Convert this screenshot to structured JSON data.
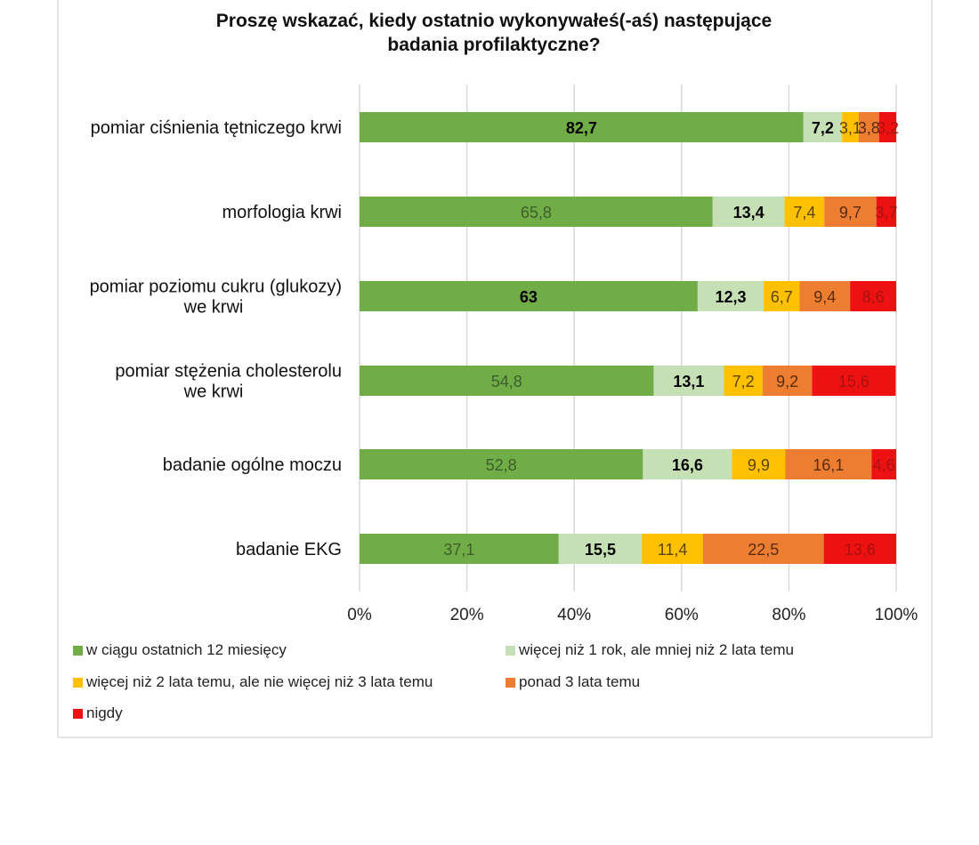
{
  "chart_data": {
    "type": "bar",
    "orientation": "horizontal",
    "stacked": true,
    "title": "Proszę wskazać, kiedy ostatnio wykonywałeś(-aś) następujące badania profilaktyczne?",
    "title_lines": [
      "Proszę wskazać, kiedy ostatnio wykonywałeś(-aś) następujące",
      "badania profilaktyczne?"
    ],
    "categories": [
      "pomiar ciśnienia tętniczego krwi",
      "morfologia krwi",
      "pomiar poziomu cukru (glukozy) we krwi",
      "pomiar stężenia cholesterolu we krwi",
      "badanie ogólne moczu",
      "badanie EKG"
    ],
    "category_lines": [
      [
        "pomiar ciśnienia tętniczego krwi"
      ],
      [
        "morfologia krwi"
      ],
      [
        "pomiar poziomu cukru (glukozy)",
        "we krwi"
      ],
      [
        "pomiar stężenia cholesterolu",
        "we krwi"
      ],
      [
        "badanie ogólne moczu"
      ],
      [
        "badanie EKG"
      ]
    ],
    "series": [
      {
        "name": "w ciągu ostatnich 12 miesięcy",
        "color": "#70ad47",
        "values": [
          82.7,
          65.8,
          63,
          54.8,
          52.8,
          37.1
        ]
      },
      {
        "name": "więcej niż 1 rok, ale mniej niż 2 lata temu",
        "color": "#c5e0b4",
        "values": [
          7.2,
          13.4,
          12.3,
          13.1,
          16.6,
          15.5
        ]
      },
      {
        "name": "więcej niż 2 lata temu, ale nie więcej niż 3 lata temu",
        "color": "#ffc000",
        "values": [
          3.1,
          7.4,
          6.7,
          7.2,
          9.9,
          11.4
        ]
      },
      {
        "name": "ponad 3 lata temu",
        "color": "#ed7d31",
        "values": [
          3.8,
          9.7,
          9.4,
          9.2,
          16.1,
          22.5
        ]
      },
      {
        "name": "nigdy",
        "color": "#ee1111",
        "values": [
          3.2,
          3.7,
          8.6,
          15.6,
          4.6,
          13.6
        ]
      }
    ],
    "data_labels": [
      [
        "82,7",
        "65,8",
        "63",
        "54,8",
        "52,8",
        "37,1"
      ],
      [
        "7,2",
        "13,4",
        "12,3",
        "13,1",
        "16,6",
        "15,5"
      ],
      [
        "3,1",
        "7,4",
        "6,7",
        "7,2",
        "9,9",
        "11,4"
      ],
      [
        "3,8",
        "9,7",
        "9,4",
        "9,2",
        "16,1",
        "22,5"
      ],
      [
        "3,2",
        "3,7",
        "8,6",
        "15,6",
        "4,6",
        "13,6"
      ]
    ],
    "x_ticks": [
      "0%",
      "20%",
      "40%",
      "60%",
      "80%",
      "100%"
    ],
    "xlim": [
      0,
      100
    ],
    "grid": "vertical",
    "legend_position": "bottom"
  }
}
